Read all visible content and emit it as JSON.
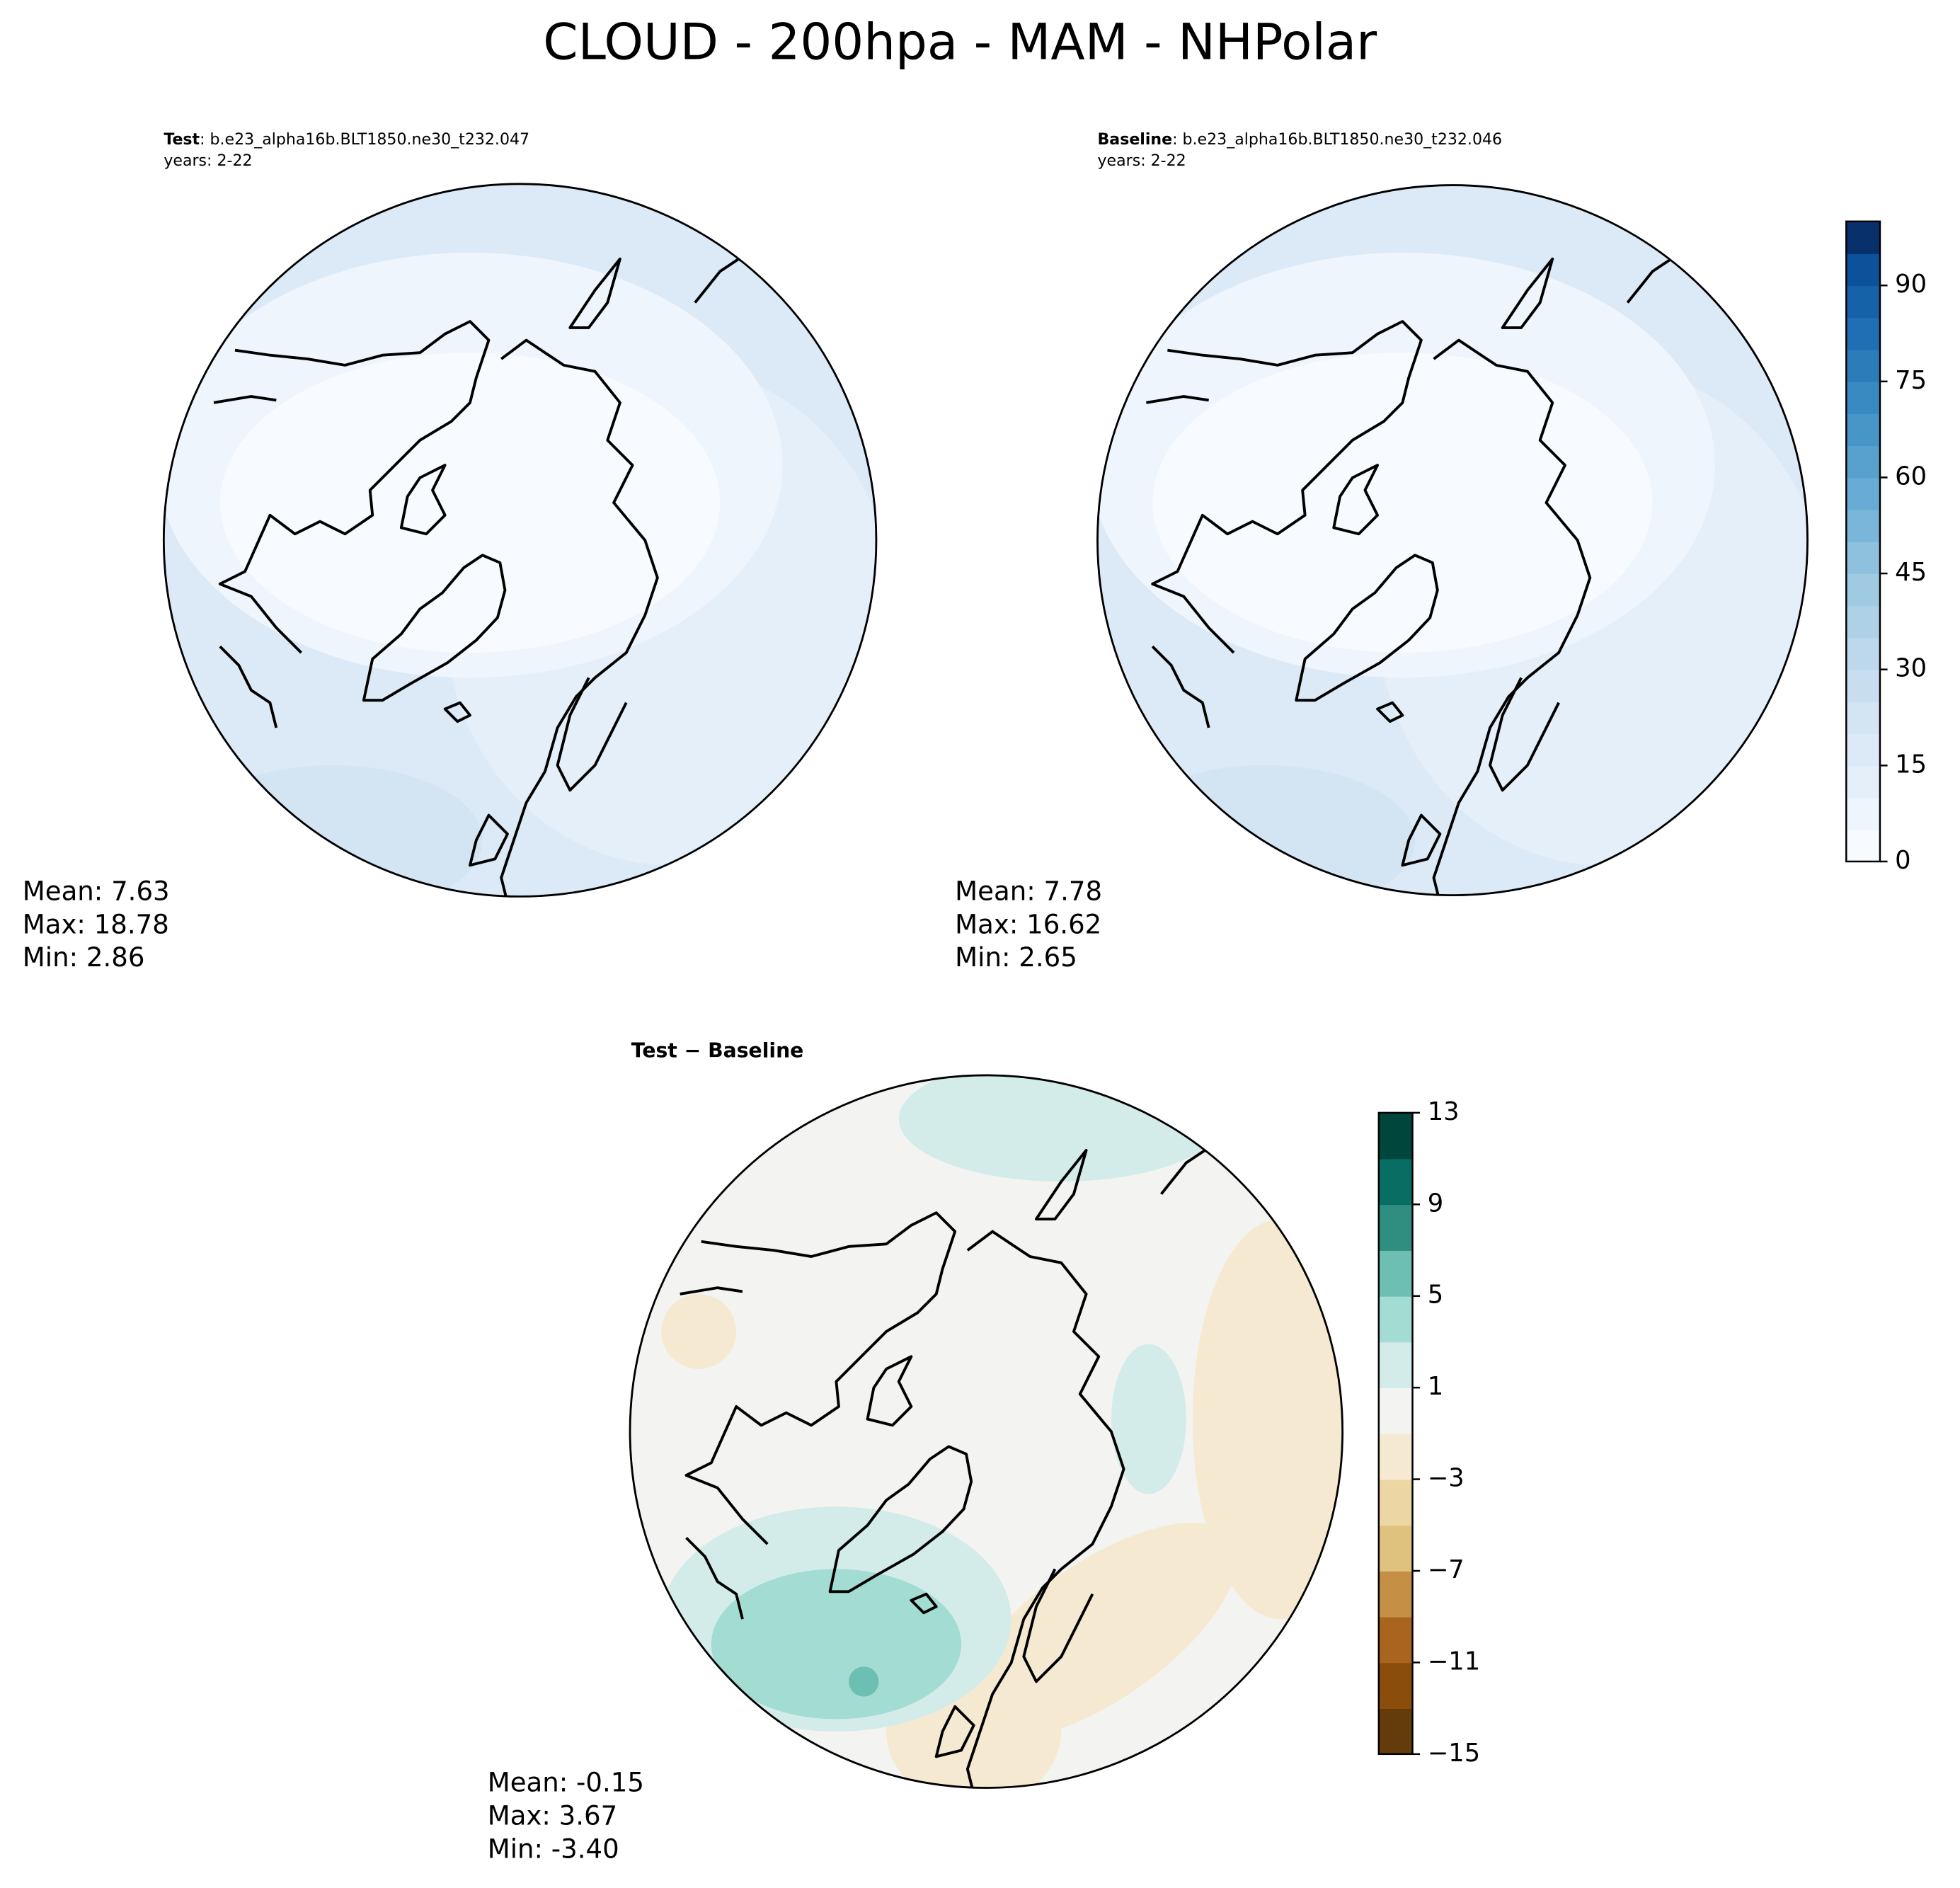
{
  "title": "CLOUD - 200hpa - MAM - NHPolar",
  "panels": [
    {
      "label": "Test",
      "case": ": b.e23_alpha16b.BLT1850.ne30_t232.047",
      "years": "years: 2-22",
      "stats": [
        "Mean:  7.63",
        "Max: 18.78",
        "Min:  2.86"
      ]
    },
    {
      "label": "Baseline",
      "case": ": b.e23_alpha16b.BLT1850.ne30_t232.046",
      "years": "years: 2-22",
      "stats": [
        "Mean:  7.78",
        "Max: 16.62",
        "Min:  2.65"
      ]
    },
    {
      "label": "Test − Baseline",
      "stats": [
        "Mean: -0.15",
        "Max:  3.67",
        "Min: -3.40"
      ]
    }
  ],
  "colorbars": [
    {
      "ylim": [
        0,
        100
      ],
      "yticks": [
        0,
        15,
        30,
        45,
        60,
        75,
        90
      ],
      "colors": [
        "#f7fbff",
        "#eef5fc",
        "#e5eff9",
        "#dce9f6",
        "#d3e4f3",
        "#c9ddf0",
        "#bdd7ec",
        "#aed1e7",
        "#9fcae1",
        "#8dc1dd",
        "#7ab6d9",
        "#68acd5",
        "#58a1cf",
        "#4895c8",
        "#3a8ac2",
        "#2c7cba",
        "#206fb4",
        "#1562a9",
        "#0b529b",
        "#08306b"
      ]
    },
    {
      "ylim": [
        -15,
        13
      ],
      "yticks": [
        {
          "value": -15,
          "label": "−15"
        },
        {
          "value": -11,
          "label": "−11"
        },
        {
          "value": -7,
          "label": "−7"
        },
        {
          "value": -3,
          "label": "−3"
        },
        1,
        5,
        9,
        13
      ],
      "colors": [
        "#643b0b",
        "#8a4d0c",
        "#a9651f",
        "#c58f45",
        "#dfc27d",
        "#ecd6a3",
        "#f5ead1",
        "#f3f4f2",
        "#d4ece9",
        "#a2dcd3",
        "#6cbfb2",
        "#2f8e80",
        "#086e63",
        "#01463c"
      ]
    }
  ]
}
